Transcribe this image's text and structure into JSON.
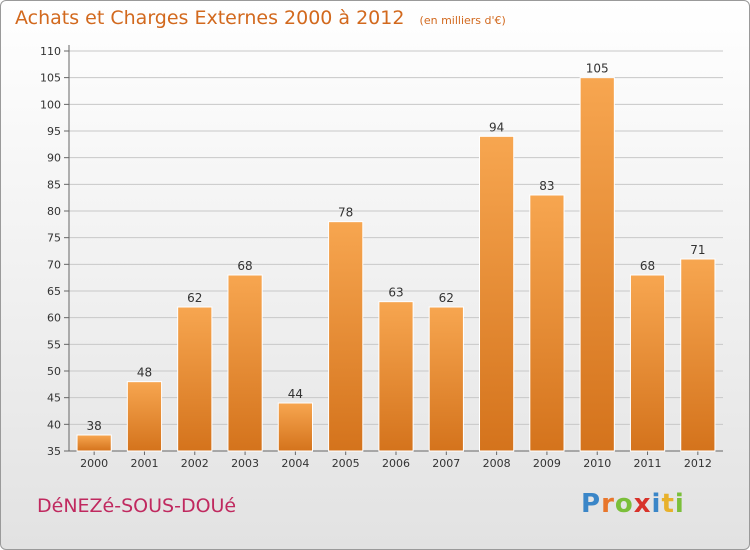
{
  "title": "Achats et Charges Externes 2000 à 2012",
  "subtitle": "(en milliers d'€)",
  "commune": "DéNEZé-SOUS-DOUé",
  "logo": {
    "letters": [
      "P",
      "r",
      "o",
      "x",
      "i",
      "t",
      "i"
    ],
    "colors": [
      "#3a86c8",
      "#e8762b",
      "#7bbf3a",
      "#d8322a",
      "#3a86c8",
      "#e8b12b",
      "#7bbf3a"
    ]
  },
  "colors": {
    "bar_top": "#f7a650",
    "bar_bottom": "#d4731c",
    "title": "#d2691e",
    "commune": "#c0295f"
  },
  "chart_data": {
    "type": "bar",
    "title": "Achats et Charges Externes 2000 à 2012",
    "categories": [
      "2000",
      "2001",
      "2002",
      "2003",
      "2004",
      "2005",
      "2006",
      "2007",
      "2008",
      "2009",
      "2010",
      "2011",
      "2012"
    ],
    "values": [
      38,
      48,
      62,
      68,
      44,
      78,
      63,
      62,
      94,
      83,
      105,
      68,
      71
    ],
    "ylim": [
      35,
      110
    ],
    "yticks": [
      35,
      40,
      45,
      50,
      55,
      60,
      65,
      70,
      75,
      80,
      85,
      90,
      95,
      100,
      105,
      110
    ],
    "grid": true
  }
}
